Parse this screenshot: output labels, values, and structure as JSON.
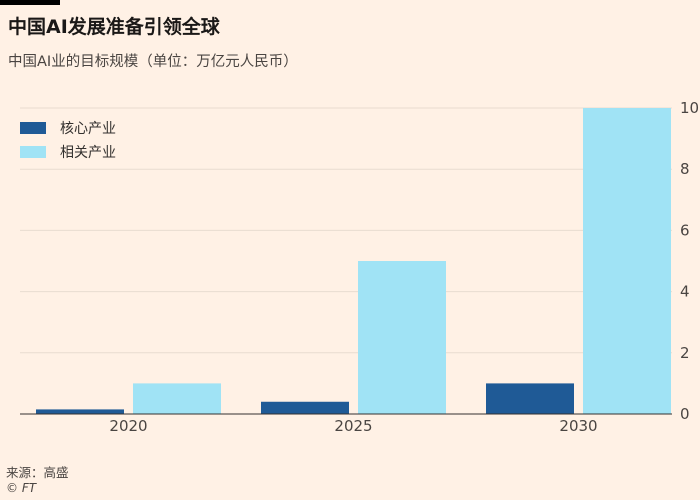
{
  "title": "中国AI发展准备引领全球",
  "subtitle": "中国AI业的目标规模（单位：万亿元人民币）",
  "source": "来源：高盛",
  "copyright": "© FT",
  "colors": {
    "background": "#fff1e5",
    "core": "#1f5a96",
    "related": "#a0e3f5",
    "grid": "#e8dcd0",
    "baseline": "#33302e"
  },
  "chart_data": {
    "type": "bar",
    "categories": [
      "2020",
      "2025",
      "2030"
    ],
    "series": [
      {
        "name": "核心产业",
        "values": [
          0.15,
          0.4,
          1.0
        ]
      },
      {
        "name": "相关产业",
        "values": [
          1.0,
          5.0,
          10.0
        ]
      }
    ],
    "ylim": [
      0,
      10
    ],
    "yticks": [
      "0",
      "2",
      "4",
      "6",
      "8",
      "10"
    ],
    "y_axis_position": "right",
    "grid": true,
    "legend_position": "top-left"
  }
}
